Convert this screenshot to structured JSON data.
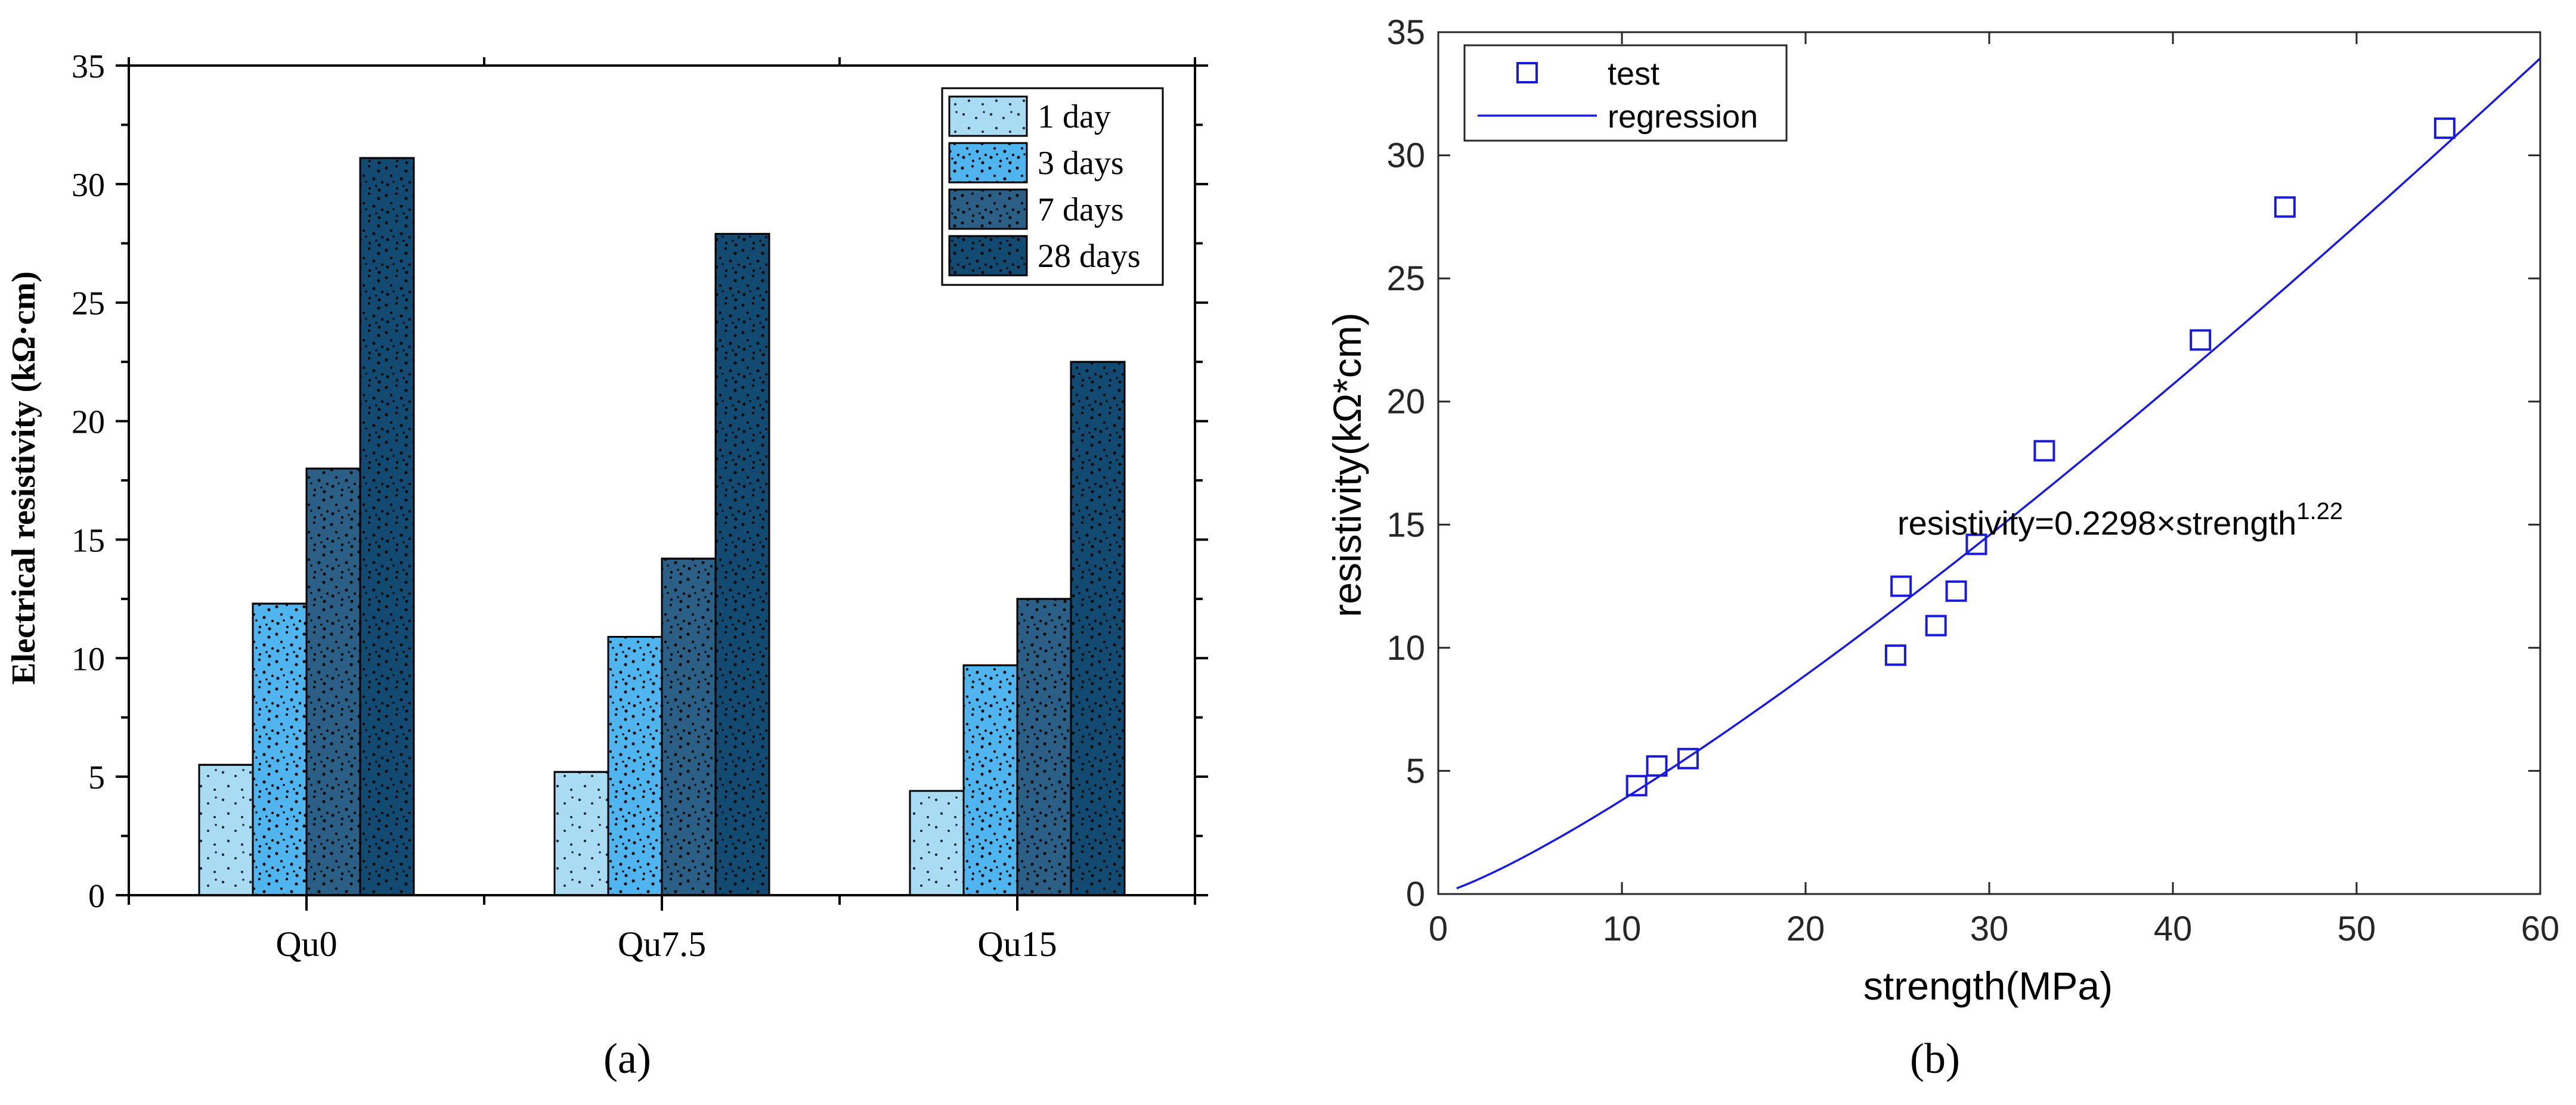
{
  "colors": {
    "day1": "#a9dcf3",
    "day3": "#50b4ef",
    "day7": "#2b5f86",
    "day28": "#134a72",
    "scatter": "#1a1adb",
    "axis": "#000000",
    "speckle": "#0a0a0a"
  },
  "chart_data": [
    {
      "id": "a",
      "type": "bar",
      "caption": "(a)",
      "ylabel": "Electrical resistivity (kΩ·cm)",
      "xlabel": "",
      "categories": [
        "Qu0",
        "Qu7.5",
        "Qu15"
      ],
      "ylim": [
        0,
        35
      ],
      "yticks": [
        0,
        5,
        10,
        15,
        20,
        25,
        30,
        35
      ],
      "grid": false,
      "legend_position": "top-right",
      "series": [
        {
          "name": "1 day",
          "color_key": "day1",
          "values": [
            5.5,
            5.2,
            4.4
          ]
        },
        {
          "name": "3 days",
          "color_key": "day3",
          "values": [
            12.3,
            10.9,
            9.7
          ]
        },
        {
          "name": "7 days",
          "color_key": "day7",
          "values": [
            18.0,
            14.2,
            12.5
          ]
        },
        {
          "name": "28 days",
          "color_key": "day28",
          "values": [
            31.1,
            27.9,
            22.5
          ]
        }
      ]
    },
    {
      "id": "b",
      "type": "scatter",
      "caption": "(b)",
      "xlabel": "strength(MPa)",
      "ylabel": "resistivity(kΩ*cm)",
      "xlim": [
        0,
        60
      ],
      "ylim": [
        0,
        35
      ],
      "xticks": [
        0,
        10,
        20,
        30,
        40,
        50,
        60
      ],
      "yticks": [
        0,
        5,
        10,
        15,
        20,
        25,
        30,
        35
      ],
      "grid": false,
      "legend_position": "top-left",
      "legend": [
        {
          "name": "test",
          "marker": "square"
        },
        {
          "name": "regression",
          "marker": "line"
        }
      ],
      "points": [
        {
          "x": 10.8,
          "y": 4.4
        },
        {
          "x": 11.9,
          "y": 5.2
        },
        {
          "x": 13.6,
          "y": 5.5
        },
        {
          "x": 24.9,
          "y": 9.7
        },
        {
          "x": 25.2,
          "y": 12.5
        },
        {
          "x": 27.1,
          "y": 10.9
        },
        {
          "x": 28.2,
          "y": 12.3
        },
        {
          "x": 29.3,
          "y": 14.2
        },
        {
          "x": 33.0,
          "y": 18.0
        },
        {
          "x": 41.5,
          "y": 22.5
        },
        {
          "x": 46.1,
          "y": 27.9
        },
        {
          "x": 54.8,
          "y": 31.1
        }
      ],
      "regression": {
        "coef": 0.2298,
        "exp": 1.22,
        "x_range": [
          1,
          60
        ]
      },
      "annotation": {
        "text": "resistivity=0.2298×strength",
        "sup": "1.22",
        "x": 25.0,
        "y": 14.6
      }
    }
  ]
}
